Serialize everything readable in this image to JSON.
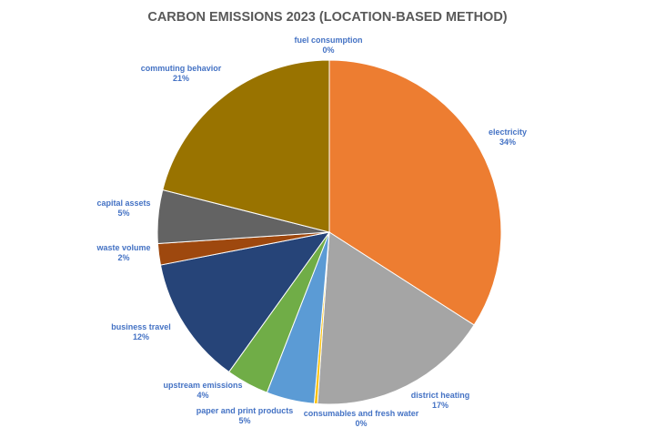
{
  "chart_data": {
    "type": "pie",
    "title": "CARBON EMISSIONS 2023 (LOCATION-BASED METHOD)",
    "slices": [
      {
        "label": "fuel consumption",
        "value": 0.0,
        "display": "0%",
        "color": "#5B9BD5"
      },
      {
        "label": "electricity",
        "value": 34.0,
        "display": "34%",
        "color": "#ED7D31"
      },
      {
        "label": "district heating",
        "value": 17.0,
        "display": "17%",
        "color": "#A5A5A5"
      },
      {
        "label": "consumables and fresh water",
        "value": 0.3,
        "display": "0%",
        "color": "#FFC000"
      },
      {
        "label": "paper and print products",
        "value": 4.5,
        "display": "5%",
        "color": "#5B9BD5"
      },
      {
        "label": "upstream emissions",
        "value": 4.0,
        "display": "4%",
        "color": "#70AD47"
      },
      {
        "label": "business travel",
        "value": 12.0,
        "display": "12%",
        "color": "#264478"
      },
      {
        "label": "waste volume",
        "value": 2.0,
        "display": "2%",
        "color": "#9E480E"
      },
      {
        "label": "capital assets",
        "value": 5.0,
        "display": "5%",
        "color": "#636363"
      },
      {
        "label": "commuting behavior",
        "value": 21.0,
        "display": "21%",
        "color": "#997300"
      }
    ],
    "legend": "none",
    "label_color": "#4472C4",
    "title_color": "#595959"
  }
}
